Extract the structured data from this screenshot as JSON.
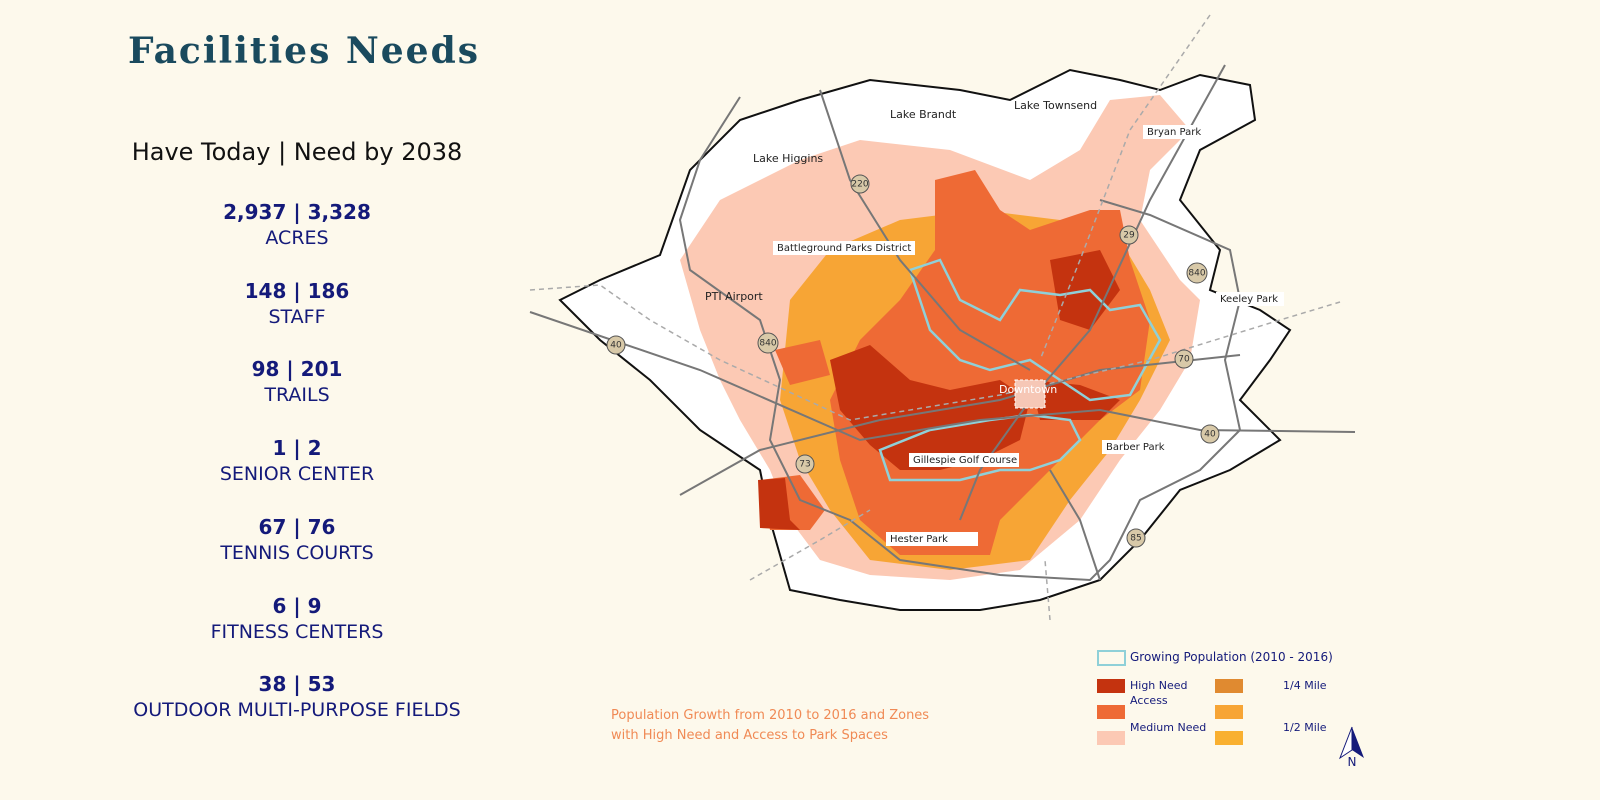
{
  "header": {
    "title": "Facilities Needs",
    "subtitle": "Have Today | Need by 2038"
  },
  "stats": [
    {
      "numbers": "2,937 | 3,328",
      "label": "ACRES"
    },
    {
      "numbers": "148 | 186",
      "label": "STAFF"
    },
    {
      "numbers": "98 | 201",
      "label": "TRAILS"
    },
    {
      "numbers": "1 | 2",
      "label": "SENIOR CENTER"
    },
    {
      "numbers": "67 | 76",
      "label": "TENNIS COURTS"
    },
    {
      "numbers": "6 | 9",
      "label": "FITNESS CENTERS"
    },
    {
      "numbers": "38 | 53",
      "label": "OUTDOOR MULTI-PURPOSE FIELDS"
    }
  ],
  "map": {
    "places": [
      "Lake Brandt",
      "Lake Townsend",
      "Lake Higgins",
      "Bryan Park",
      "Battleground Parks District",
      "PTI Airport",
      "Keeley Park",
      "Downtown",
      "Barber Park",
      "Gillespie Golf Course",
      "Hester Park"
    ],
    "highways": [
      "220",
      "29",
      "840",
      "840",
      "40",
      "70",
      "40",
      "73",
      "85"
    ],
    "caption": "Population Growth from 2010 to 2016 and Zones with High Need and Access to Park Spaces",
    "north": "N"
  },
  "legend": {
    "growing": "Growing Population (2010 - 2016)",
    "high_need": "High Need Access",
    "medium_need": "Medium Need",
    "quarter_mile": "1/4 Mile",
    "half_mile": "1/2 Mile"
  }
}
